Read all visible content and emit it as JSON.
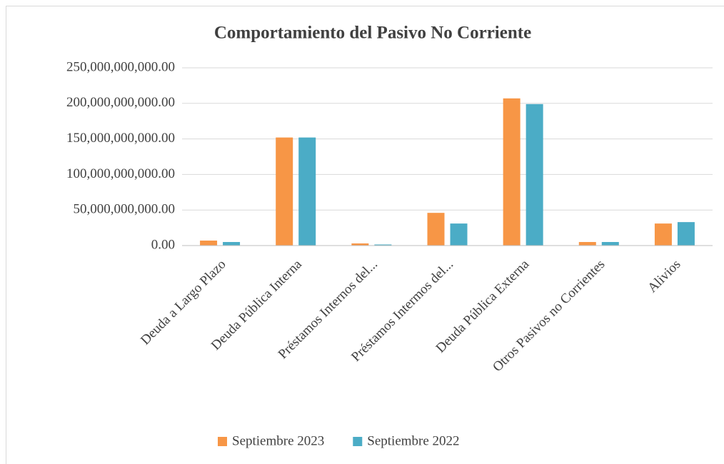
{
  "chart_data": {
    "type": "bar",
    "title": "Comportamiento del Pasivo No Corriente",
    "categories": [
      "Deuda a Largo Plazo",
      "Deuda Pública Interna",
      "Préstamos Internos del...",
      "Préstamos Intermos del...",
      "Deuda Pública Externa",
      "Otros Pasivos no Corrientes",
      "Alivios"
    ],
    "series": [
      {
        "name": "Septiembre 2023",
        "color": "#f79646",
        "values": [
          7000000000,
          152000000000,
          3000000000,
          46000000000,
          207000000000,
          5000000000,
          31000000000
        ]
      },
      {
        "name": "Septiembre 2022",
        "color": "#4bacc6",
        "values": [
          5000000000,
          152000000000,
          1500000000,
          31000000000,
          199000000000,
          5000000000,
          33000000000
        ]
      }
    ],
    "ylim": [
      0,
      250000000000
    ],
    "yticks": [
      {
        "value": 0,
        "label": "0.00"
      },
      {
        "value": 50000000000,
        "label": "50,000,000,000.00"
      },
      {
        "value": 100000000000,
        "label": "100,000,000,000.00"
      },
      {
        "value": 150000000000,
        "label": "150,000,000,000.00"
      },
      {
        "value": 200000000000,
        "label": "200,000,000,000.00"
      },
      {
        "value": 250000000000,
        "label": "250,000,000,000.00"
      }
    ],
    "grid": true,
    "legend": "bottom"
  }
}
